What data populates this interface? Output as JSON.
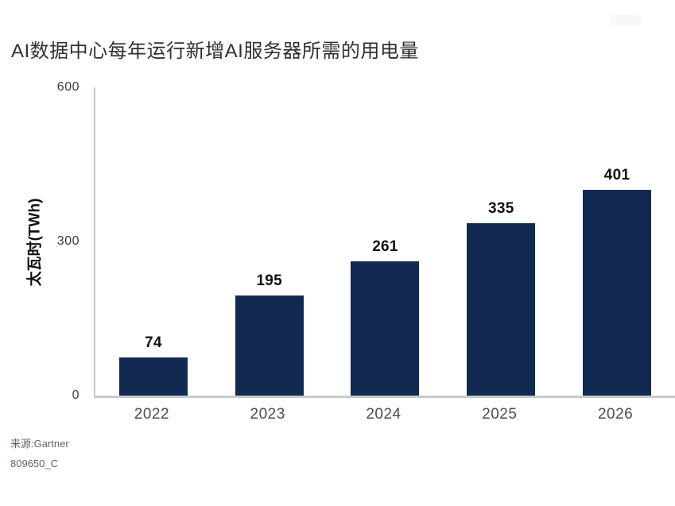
{
  "title": "AI数据中心每年运行新增AI服务器所需的用电量",
  "source": {
    "line1": "来源:Gartner",
    "line2": "809650_C"
  },
  "colors": {
    "bar": "#122a52",
    "axis": "#c6cacd",
    "title_text": "#303030",
    "value_label": "#101010",
    "tick_label": "#3d3d3d",
    "category_label": "#4d4d4d",
    "source_text": "#5b6770"
  },
  "chart_data": {
    "type": "bar",
    "title": "AI数据中心每年运行新增AI服务器所需的用电量",
    "categories": [
      "2022",
      "2023",
      "2024",
      "2025",
      "2026"
    ],
    "values": [
      74,
      195,
      261,
      335,
      401
    ],
    "xlabel": "",
    "ylabel": "太瓦时(TWh)",
    "ylim": [
      0,
      600
    ],
    "yticks": [
      0,
      300,
      600
    ],
    "grid": false,
    "legend": false,
    "value_labels": true,
    "source": "来源:Gartner",
    "document_code": "809650_C"
  }
}
